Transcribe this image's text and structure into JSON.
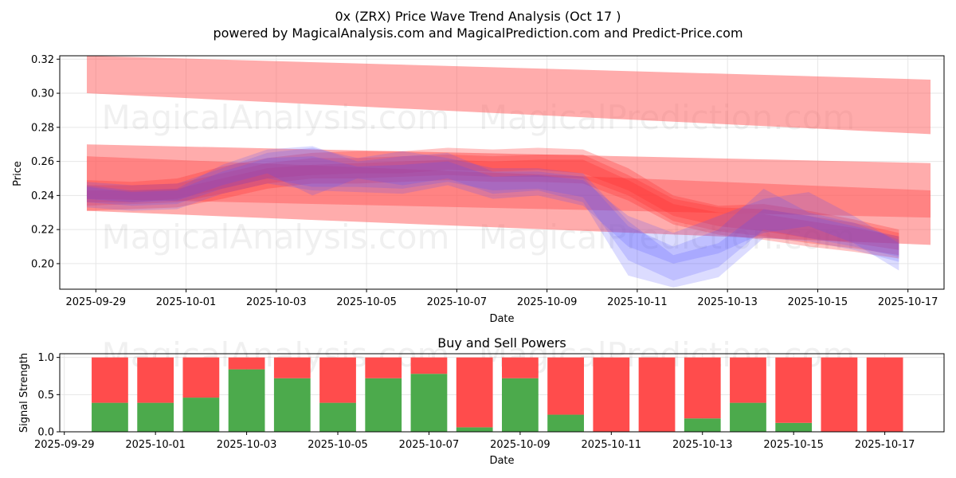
{
  "chart_data": [
    {
      "type": "area",
      "title": "0x (ZRX) Price Wave Trend Analysis (Oct 17 )",
      "subtitle": "powered by MagicalAnalysis.com and MagicalPrediction.com and Predict-Price.com",
      "xlabel": "Date",
      "ylabel": "Price",
      "ylim": [
        0.185,
        0.322
      ],
      "xlim": [
        "2025-09-28.2",
        "2025-10-17.8"
      ],
      "x_ticks": [
        "2025-09-29",
        "2025-10-01",
        "2025-10-03",
        "2025-10-05",
        "2025-10-07",
        "2025-10-09",
        "2025-10-11",
        "2025-10-13",
        "2025-10-15",
        "2025-10-17"
      ],
      "y_ticks": [
        "0.20",
        "0.22",
        "0.24",
        "0.26",
        "0.28",
        "0.30",
        "0.32"
      ],
      "grid": true,
      "watermarks": [
        "MagicalAnalysis.com",
        "MagicalPrediction.com"
      ],
      "red_bands": [
        {
          "x": [
            0,
            19.3
          ],
          "upper": [
            0.322,
            0.308
          ],
          "lower": [
            0.3,
            0.276
          ]
        },
        {
          "x": [
            0,
            19.3
          ],
          "upper": [
            0.27,
            0.259
          ],
          "lower": [
            0.231,
            0.211
          ]
        },
        {
          "x": [
            0,
            19.3
          ],
          "upper": [
            0.263,
            0.243
          ],
          "lower": [
            0.238,
            0.227
          ]
        }
      ],
      "price_days": [
        0.6,
        1.6,
        2.6,
        3.6,
        4.6,
        5.6,
        6.6,
        7.6,
        8.6,
        9.6,
        10.6,
        11.6,
        12.6,
        13.6,
        14.6,
        15.6,
        16.6,
        17.6,
        18.6
      ],
      "red_waves": [
        {
          "upper": [
            0.246,
            0.246,
            0.247,
            0.253,
            0.259,
            0.262,
            0.262,
            0.263,
            0.264,
            0.263,
            0.264,
            0.264,
            0.252,
            0.238,
            0.233,
            0.232,
            0.228,
            0.224,
            0.218
          ],
          "lower": [
            0.234,
            0.235,
            0.236,
            0.241,
            0.247,
            0.25,
            0.25,
            0.251,
            0.252,
            0.251,
            0.251,
            0.25,
            0.24,
            0.225,
            0.219,
            0.216,
            0.212,
            0.209,
            0.205
          ]
        },
        {
          "upper": [
            0.249,
            0.248,
            0.25,
            0.257,
            0.262,
            0.265,
            0.266,
            0.266,
            0.268,
            0.267,
            0.268,
            0.267,
            0.256,
            0.24,
            0.234,
            0.235,
            0.231,
            0.226,
            0.22
          ],
          "lower": [
            0.236,
            0.236,
            0.238,
            0.244,
            0.25,
            0.252,
            0.253,
            0.253,
            0.255,
            0.254,
            0.255,
            0.253,
            0.243,
            0.228,
            0.222,
            0.219,
            0.215,
            0.212,
            0.208
          ]
        },
        {
          "upper": [
            0.243,
            0.243,
            0.244,
            0.25,
            0.256,
            0.258,
            0.259,
            0.26,
            0.261,
            0.26,
            0.261,
            0.261,
            0.249,
            0.235,
            0.23,
            0.229,
            0.225,
            0.221,
            0.216
          ],
          "lower": [
            0.231,
            0.232,
            0.233,
            0.238,
            0.244,
            0.247,
            0.247,
            0.248,
            0.249,
            0.248,
            0.248,
            0.247,
            0.237,
            0.223,
            0.217,
            0.214,
            0.21,
            0.207,
            0.203
          ]
        }
      ],
      "blue_waves": [
        {
          "upper": [
            0.248,
            0.246,
            0.247,
            0.256,
            0.265,
            0.268,
            0.262,
            0.266,
            0.262,
            0.256,
            0.256,
            0.253,
            0.225,
            0.205,
            0.212,
            0.232,
            0.228,
            0.222,
            0.216
          ],
          "lower": [
            0.236,
            0.234,
            0.235,
            0.244,
            0.25,
            0.245,
            0.245,
            0.244,
            0.248,
            0.243,
            0.244,
            0.239,
            0.202,
            0.19,
            0.198,
            0.22,
            0.215,
            0.21,
            0.204
          ]
        },
        {
          "upper": [
            0.246,
            0.243,
            0.244,
            0.258,
            0.267,
            0.269,
            0.26,
            0.263,
            0.265,
            0.254,
            0.254,
            0.251,
            0.222,
            0.21,
            0.22,
            0.244,
            0.23,
            0.224,
            0.214
          ],
          "lower": [
            0.238,
            0.236,
            0.237,
            0.246,
            0.253,
            0.24,
            0.25,
            0.246,
            0.25,
            0.241,
            0.243,
            0.236,
            0.193,
            0.186,
            0.192,
            0.215,
            0.213,
            0.208,
            0.201
          ]
        },
        {
          "upper": [
            0.245,
            0.242,
            0.243,
            0.254,
            0.262,
            0.263,
            0.257,
            0.258,
            0.26,
            0.251,
            0.252,
            0.249,
            0.228,
            0.218,
            0.228,
            0.238,
            0.242,
            0.228,
            0.212
          ],
          "lower": [
            0.233,
            0.231,
            0.232,
            0.241,
            0.247,
            0.243,
            0.242,
            0.241,
            0.246,
            0.238,
            0.24,
            0.234,
            0.21,
            0.2,
            0.206,
            0.218,
            0.222,
            0.212,
            0.196
          ]
        }
      ]
    },
    {
      "type": "bar",
      "title": "Buy and Sell Powers",
      "xlabel": "Date",
      "ylabel": "Signal Strength",
      "ylim": [
        0,
        1.05
      ],
      "y_ticks": [
        "0.0",
        "0.5",
        "1.0"
      ],
      "x_ticks": [
        "2025-09-29",
        "2025-10-01",
        "2025-10-03",
        "2025-10-05",
        "2025-10-07",
        "2025-10-09",
        "2025-10-11",
        "2025-10-13",
        "2025-10-15",
        "2025-10-17"
      ],
      "categories": [
        "2025-09-30",
        "2025-10-01",
        "2025-10-02",
        "2025-10-03",
        "2025-10-04",
        "2025-10-05",
        "2025-10-06",
        "2025-10-07",
        "2025-10-08",
        "2025-10-09",
        "2025-10-10",
        "2025-10-11",
        "2025-10-12",
        "2025-10-13",
        "2025-10-14",
        "2025-10-15",
        "2025-10-16",
        "2025-10-17"
      ],
      "series": [
        {
          "name": "Buy",
          "color": "#4caa4c",
          "values": [
            0.39,
            0.39,
            0.46,
            0.84,
            0.72,
            0.39,
            0.72,
            0.78,
            0.06,
            0.72,
            0.23,
            0.0,
            0.0,
            0.18,
            0.39,
            0.12,
            0.0,
            0.0
          ]
        },
        {
          "name": "Sell",
          "color": "#ff4c4c",
          "values": [
            0.61,
            0.61,
            0.54,
            0.16,
            0.28,
            0.61,
            0.28,
            0.22,
            0.94,
            0.28,
            0.77,
            1.0,
            1.0,
            0.82,
            0.61,
            0.88,
            1.0,
            1.0
          ]
        }
      ]
    }
  ],
  "colors": {
    "red_band": "#ff5a5a",
    "red_wave": "#ff2a2a",
    "blue_wave": "#5050ff",
    "grid": "#e6e6e6"
  }
}
